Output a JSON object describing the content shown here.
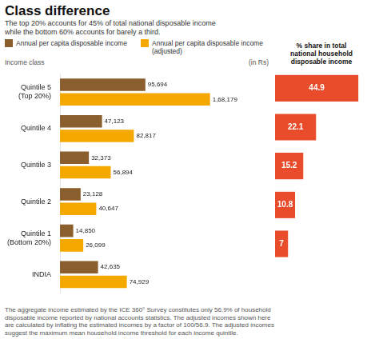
{
  "chart_data": [
    {
      "type": "bar",
      "orientation": "horizontal",
      "title": "Class difference",
      "subtitle": "The top 20% accounts for 45% of total national disposable income\nwhile the bottom 60% accounts for barely a third.",
      "ylabel": "Income class",
      "xlabel": "(in Rs)",
      "footnote": "The aggregate income estimated by the ICE 360° Survey constitutes only 56.9% of household\ndisposable income reported by national accounts statistics. The adjusted incomes shown here\nare calculated by inflating the estimated incomes by a factor of 100/56.9. The adjusted incomes\nsuggest the maximum mean household income threshold for each income quintile.",
      "categories": [
        "Quintile 5\n(Top 20%)",
        "Quintile 4",
        "Quintile 3",
        "Quintile 2",
        "Quintile 1\n(Bottom 20%)",
        "INDIA"
      ],
      "series": [
        {
          "name": "Annual per capita disposable income",
          "color": "#8B5E2E",
          "values": [
            95694,
            47123,
            32373,
            23128,
            14850,
            42635
          ],
          "value_labels": [
            "95,694",
            "47,123",
            "32,373",
            "23,128",
            "14,850",
            "42,635"
          ]
        },
        {
          "name": "Annual per capita disposable income (adjusted)",
          "color": "#F5A800",
          "values": [
            168179,
            82817,
            56894,
            40647,
            26099,
            74929
          ],
          "value_labels": [
            "1,68,179",
            "82,817",
            "56,894",
            "40,647",
            "26,099",
            "74,929"
          ]
        }
      ],
      "xlim": [
        0,
        232087.02
      ],
      "data_labels": true,
      "grid": false,
      "tick_labels": "y",
      "legend": "top"
    },
    {
      "type": "bar",
      "orientation": "horizontal",
      "title": "% share in total\nnational household\ndisposable income",
      "categories": [
        "Quintile 5\n(Top 20%)",
        "Quintile 4",
        "Quintile 3",
        "Quintile 2",
        "Quintile 1\n(Bottom 20%)",
        "INDIA"
      ],
      "values": [
        44.9,
        22.1,
        15.2,
        10.8,
        7,
        null
      ],
      "color": "#E84C2B",
      "xlim": [
        0,
        50
      ],
      "data_labels": true,
      "grid": false,
      "tick_labels": false
    }
  ]
}
